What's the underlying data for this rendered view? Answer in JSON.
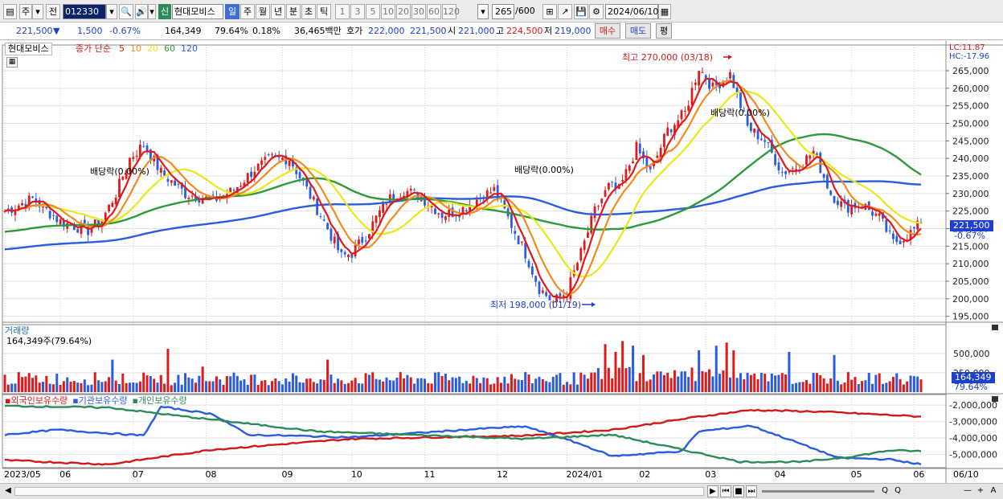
{
  "toolbar": {
    "menu_glyph": "▤",
    "type_label": "주",
    "type_arrow": "▾",
    "prev_label": "전",
    "code": "012330",
    "code_arrow": "▾",
    "search_glyph": "🔍",
    "speaker_glyph": "🔊",
    "speaker_arrow": "▾",
    "new_badge": "신",
    "stock_name": "현대모비스",
    "periods": [
      "일",
      "주",
      "월",
      "년",
      "분",
      "초",
      "틱"
    ],
    "selected_period": "일",
    "intervals": [
      "1",
      "3",
      "5",
      "10",
      "20",
      "30",
      "60",
      "120"
    ],
    "dropdown_arrow": "▾",
    "count_shown": "265",
    "count_total": "/600",
    "tool_glyphs": [
      "⊞",
      "↗",
      "💾",
      "⚙"
    ],
    "date": "2024/06/10",
    "date_glyph": "▦"
  },
  "info": {
    "price": "221,500",
    "down_arrow": "▼",
    "change": "1,500",
    "change_pct": "-0.67%",
    "volume": "164,349",
    "vol_ratio": "79.64%",
    "turnover": "0.18%",
    "amount": "36,465백만",
    "quote_label": "호가",
    "ask": "222,000",
    "bid": "221,500",
    "open_label": "시",
    "open": "221,000",
    "high_label": "고",
    "high": "224,500",
    "low_label": "저",
    "low": "219,000",
    "buy_label": "매수",
    "sell_label": "매도",
    "avg_label": "평"
  },
  "price_panel": {
    "name": "현대모비스",
    "ma_title": "종가 단순",
    "ma_periods": [
      {
        "label": "5",
        "color": "#e01a1a"
      },
      {
        "label": "10",
        "color": "#f08c1e"
      },
      {
        "label": "20",
        "color": "#e8e81a"
      },
      {
        "label": "60",
        "color": "#2e9a3a"
      },
      {
        "label": "120",
        "color": "#2a5ce0"
      }
    ],
    "lc": "LC:11.87",
    "hc": "HC:-17.96",
    "current_price_label": "221,500",
    "current_pct_label": "-0.67%",
    "high_note": "최고 270,000 (03/18)",
    "low_note": "최저 198,000 (01/19)",
    "dividend_note": "배당락(0.00%)",
    "calc_glyph": "▦"
  },
  "volume_panel": {
    "title": "거래량",
    "subtitle": "164,349주(79.64%)",
    "current_label": "164,349",
    "current_pct": "79.64%"
  },
  "holdings_panel": {
    "legend": [
      {
        "label": "외국인보유수량",
        "color": "#d21919"
      },
      {
        "label": "기관보유수량",
        "color": "#2a5ce0"
      },
      {
        "label": "개인보유수량",
        "color": "#2e8b57"
      }
    ]
  },
  "x_axis": {
    "labels": [
      "2023/05",
      "06",
      "07",
      "08",
      "09",
      "10",
      "11",
      "12",
      "2024/01",
      "02",
      "03",
      "04",
      "05",
      "06"
    ],
    "last_label": "06/10"
  },
  "statusbar": {
    "glyphs": [
      "◀",
      "▶",
      "⏮",
      "■",
      "⏭",
      "Q",
      "Q",
      "—",
      "+",
      "A"
    ]
  },
  "colors": {
    "up": "#e01a1a",
    "down": "#2a5ce0",
    "ma5": "#e01a1a",
    "ma10": "#f08c1e",
    "ma20": "#e8e81a",
    "ma60": "#2e9a3a",
    "ma120": "#2a5ce0"
  },
  "chart_data": {
    "type": "line",
    "price_axis": {
      "ticks": [
        "265,000",
        "260,000",
        "255,000",
        "250,000",
        "245,000",
        "240,000",
        "235,000",
        "230,000",
        "225,000",
        "220,000",
        "215,000",
        "210,000",
        "205,000",
        "200,000",
        "195,000"
      ],
      "range": [
        194000,
        270500
      ]
    },
    "volume_axis": {
      "ticks": [
        "500,000",
        "250,000"
      ],
      "range": [
        0,
        820000
      ]
    },
    "holdings_axis": {
      "ticks": [
        "-2,000,000",
        "-3,000,000",
        "-4,000,000",
        "-5,000,000"
      ],
      "range": [
        -5800000,
        -1700000
      ]
    },
    "close_anchors": [
      {
        "d": 0,
        "v": 225000
      },
      {
        "d": 8,
        "v": 228500
      },
      {
        "d": 16,
        "v": 222000
      },
      {
        "d": 24,
        "v": 219500
      },
      {
        "d": 28,
        "v": 222500
      },
      {
        "d": 32,
        "v": 230000
      },
      {
        "d": 36,
        "v": 240000
      },
      {
        "d": 40,
        "v": 244000
      },
      {
        "d": 45,
        "v": 236000
      },
      {
        "d": 52,
        "v": 230000
      },
      {
        "d": 60,
        "v": 228000
      },
      {
        "d": 66,
        "v": 231000
      },
      {
        "d": 72,
        "v": 237000
      },
      {
        "d": 77,
        "v": 240000
      },
      {
        "d": 82,
        "v": 240000
      },
      {
        "d": 86,
        "v": 233000
      },
      {
        "d": 92,
        "v": 222000
      },
      {
        "d": 97,
        "v": 212000
      },
      {
        "d": 100,
        "v": 213000
      },
      {
        "d": 104,
        "v": 218000
      },
      {
        "d": 110,
        "v": 228000
      },
      {
        "d": 115,
        "v": 231000
      },
      {
        "d": 120,
        "v": 229000
      },
      {
        "d": 126,
        "v": 224000
      },
      {
        "d": 131,
        "v": 225000
      },
      {
        "d": 137,
        "v": 229000
      },
      {
        "d": 141,
        "v": 231000
      },
      {
        "d": 145,
        "v": 223000
      },
      {
        "d": 150,
        "v": 213000
      },
      {
        "d": 154,
        "v": 203000
      },
      {
        "d": 158,
        "v": 199000
      },
      {
        "d": 162,
        "v": 202000
      },
      {
        "d": 166,
        "v": 213000
      },
      {
        "d": 170,
        "v": 225000
      },
      {
        "d": 174,
        "v": 232000
      },
      {
        "d": 177,
        "v": 231000
      },
      {
        "d": 182,
        "v": 243000
      },
      {
        "d": 186,
        "v": 236000
      },
      {
        "d": 191,
        "v": 248000
      },
      {
        "d": 196,
        "v": 253000
      },
      {
        "d": 200,
        "v": 266000
      },
      {
        "d": 204,
        "v": 260000
      },
      {
        "d": 209,
        "v": 264000
      },
      {
        "d": 214,
        "v": 249000
      },
      {
        "d": 219,
        "v": 245000
      },
      {
        "d": 224,
        "v": 236000
      },
      {
        "d": 229,
        "v": 238000
      },
      {
        "d": 233,
        "v": 242000
      },
      {
        "d": 238,
        "v": 230000
      },
      {
        "d": 242,
        "v": 226000
      },
      {
        "d": 247,
        "v": 227000
      },
      {
        "d": 252,
        "v": 223000
      },
      {
        "d": 256,
        "v": 216000
      },
      {
        "d": 260,
        "v": 218000
      },
      {
        "d": 264,
        "v": 221500
      }
    ],
    "volume_spikes": [
      {
        "d": 47,
        "v": 560000
      },
      {
        "d": 93,
        "v": 420000
      },
      {
        "d": 173,
        "v": 620000
      },
      {
        "d": 176,
        "v": 520000
      },
      {
        "d": 178,
        "v": 660000
      },
      {
        "d": 181,
        "v": 600000
      },
      {
        "d": 184,
        "v": 480000
      },
      {
        "d": 200,
        "v": 540000
      },
      {
        "d": 205,
        "v": 600000
      },
      {
        "d": 208,
        "v": 640000
      },
      {
        "d": 210,
        "v": 540000
      },
      {
        "d": 226,
        "v": 520000
      },
      {
        "d": 239,
        "v": 480000
      },
      {
        "d": 31,
        "v": 420000
      },
      {
        "d": 57,
        "v": 330000
      }
    ],
    "holdings": [
      {
        "name": "외국인보유수량",
        "color": "#d21919",
        "anchors": [
          {
            "d": 0,
            "v": -5350000
          },
          {
            "d": 30,
            "v": -5600000
          },
          {
            "d": 60,
            "v": -4700000
          },
          {
            "d": 100,
            "v": -4050000
          },
          {
            "d": 150,
            "v": -3850000
          },
          {
            "d": 175,
            "v": -3500000
          },
          {
            "d": 200,
            "v": -2700000
          },
          {
            "d": 215,
            "v": -2300000
          },
          {
            "d": 235,
            "v": -2400000
          },
          {
            "d": 250,
            "v": -2550000
          },
          {
            "d": 264,
            "v": -2700000
          }
        ]
      },
      {
        "name": "기관보유수량",
        "color": "#2a5ce0",
        "anchors": [
          {
            "d": 0,
            "v": -3800000
          },
          {
            "d": 15,
            "v": -3500000
          },
          {
            "d": 40,
            "v": -3850000
          },
          {
            "d": 45,
            "v": -2100000
          },
          {
            "d": 60,
            "v": -2550000
          },
          {
            "d": 70,
            "v": -3800000
          },
          {
            "d": 100,
            "v": -3950000
          },
          {
            "d": 140,
            "v": -3400000
          },
          {
            "d": 150,
            "v": -3300000
          },
          {
            "d": 165,
            "v": -4300000
          },
          {
            "d": 175,
            "v": -5100000
          },
          {
            "d": 195,
            "v": -4800000
          },
          {
            "d": 200,
            "v": -3600000
          },
          {
            "d": 215,
            "v": -3250000
          },
          {
            "d": 230,
            "v": -4400000
          },
          {
            "d": 240,
            "v": -5200000
          },
          {
            "d": 255,
            "v": -5300000
          },
          {
            "d": 264,
            "v": -5600000
          }
        ]
      },
      {
        "name": "개인보유수량",
        "color": "#2e8b57",
        "anchors": [
          {
            "d": 0,
            "v": -2050000
          },
          {
            "d": 30,
            "v": -2150000
          },
          {
            "d": 50,
            "v": -2650000
          },
          {
            "d": 90,
            "v": -3600000
          },
          {
            "d": 150,
            "v": -4050000
          },
          {
            "d": 175,
            "v": -3800000
          },
          {
            "d": 195,
            "v": -4700000
          },
          {
            "d": 212,
            "v": -5450000
          },
          {
            "d": 230,
            "v": -5450000
          },
          {
            "d": 245,
            "v": -5100000
          },
          {
            "d": 255,
            "v": -4750000
          },
          {
            "d": 264,
            "v": -4800000
          }
        ]
      }
    ]
  }
}
